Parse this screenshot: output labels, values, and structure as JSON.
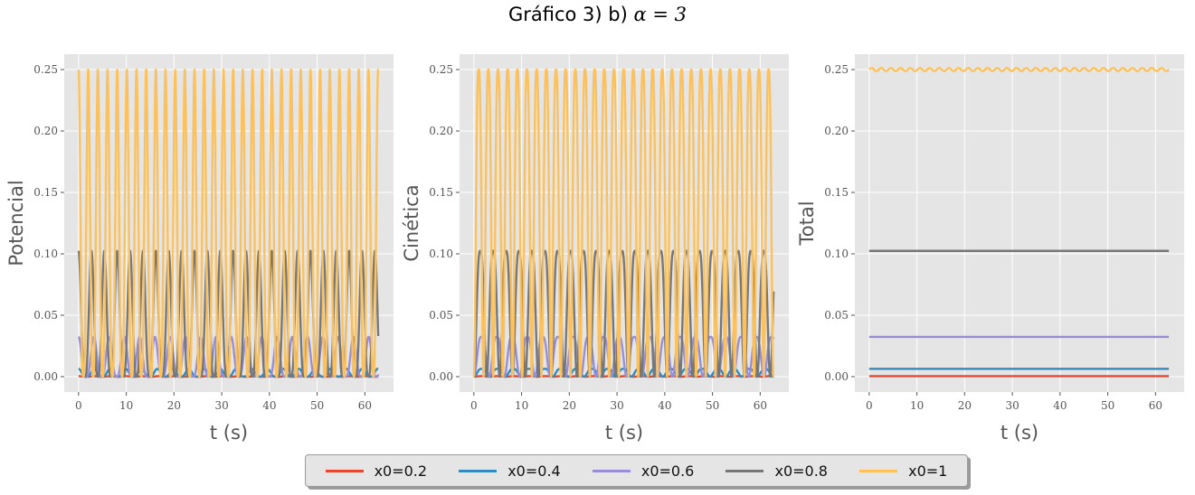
{
  "figure": {
    "title_text": "Gráfico 3) b)",
    "title_math": "α = 3"
  },
  "colors": {
    "x0=0.2": "#E24A33",
    "x0=0.4": "#348ABD",
    "x0=0.6": "#988ED5",
    "x0=0.8": "#777777",
    "x0=1": "#FBC15E"
  },
  "chart_data": [
    {
      "type": "line",
      "ylabel": "Potencial",
      "xlabel": "t (s)",
      "xlim": [
        -3,
        66
      ],
      "ylim": [
        -0.0125,
        0.2625
      ],
      "xticks": [
        "0",
        "10",
        "20",
        "30",
        "40",
        "50",
        "60"
      ],
      "yticks": [
        "0.00",
        "0.05",
        "0.10",
        "0.15",
        "0.20",
        "0.25"
      ],
      "grid": true,
      "series": [
        {
          "name": "x0=0.2",
          "amplitude": 0.0004,
          "period": 6.7,
          "t_end": 62.8
        },
        {
          "name": "x0=0.4",
          "amplitude": 0.0064,
          "period": 6.6,
          "t_end": 62.8
        },
        {
          "name": "x0=0.6",
          "amplitude": 0.0324,
          "period": 6.4,
          "t_end": 62.8
        },
        {
          "name": "x0=0.8",
          "amplitude": 0.1024,
          "period": 5.4,
          "t_end": 62.8
        },
        {
          "name": "x0=1",
          "amplitude": 0.25,
          "period": 4.05,
          "t_end": 62.8
        }
      ]
    },
    {
      "type": "line",
      "ylabel": "Cinética",
      "xlabel": "t (s)",
      "xlim": [
        -3,
        66
      ],
      "ylim": [
        -0.0125,
        0.2625
      ],
      "xticks": [
        "0",
        "10",
        "20",
        "30",
        "40",
        "50",
        "60"
      ],
      "yticks": [
        "0.00",
        "0.05",
        "0.10",
        "0.15",
        "0.20",
        "0.25"
      ],
      "grid": true,
      "series": [
        {
          "name": "x0=0.2",
          "amplitude": 0.0004,
          "period": 6.7,
          "t_end": 62.8
        },
        {
          "name": "x0=0.4",
          "amplitude": 0.0064,
          "period": 6.6,
          "t_end": 62.8
        },
        {
          "name": "x0=0.6",
          "amplitude": 0.0324,
          "period": 6.4,
          "t_end": 62.8
        },
        {
          "name": "x0=0.8",
          "amplitude": 0.1024,
          "period": 5.4,
          "t_end": 62.8
        },
        {
          "name": "x0=1",
          "amplitude": 0.25,
          "period": 4.05,
          "t_end": 62.8
        }
      ]
    },
    {
      "type": "line",
      "ylabel": "Total",
      "xlabel": "t (s)",
      "xlim": [
        -3,
        66
      ],
      "ylim": [
        -0.0125,
        0.2625
      ],
      "xticks": [
        "0",
        "10",
        "20",
        "30",
        "40",
        "50",
        "60"
      ],
      "yticks": [
        "0.00",
        "0.05",
        "0.10",
        "0.15",
        "0.20",
        "0.25"
      ],
      "grid": true,
      "series": [
        {
          "name": "x0=0.2",
          "value": 0.0004
        },
        {
          "name": "x0=0.4",
          "value": 0.0064
        },
        {
          "name": "x0=0.6",
          "value": 0.0324
        },
        {
          "name": "x0=0.8",
          "value": 0.1024
        },
        {
          "name": "x0=1",
          "value": 0.25
        }
      ]
    }
  ],
  "legend": {
    "placement": "bottom-center",
    "entries": [
      "x0=0.2",
      "x0=0.4",
      "x0=0.6",
      "x0=0.8",
      "x0=1"
    ]
  }
}
